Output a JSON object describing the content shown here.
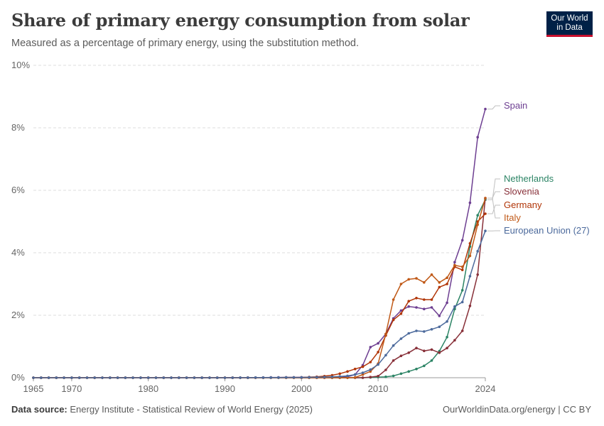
{
  "header": {
    "title": "Share of primary energy consumption from solar",
    "subtitle": "Measured as a percentage of primary energy, using the substitution method."
  },
  "logo": {
    "line1": "Our World",
    "line2": "in Data"
  },
  "footer": {
    "source_label": "Data source:",
    "source_text": "Energy Institute - Statistical Review of World Energy (2025)",
    "right_text": "OurWorldinData.org/energy | CC BY"
  },
  "colors": {
    "grid": "#dddddd",
    "axis_text": "#666666",
    "logo_bg": "#002147",
    "logo_accent": "#c8102e"
  },
  "chart_data": {
    "type": "line",
    "xlim": [
      1965,
      2024
    ],
    "ylim": [
      0,
      10
    ],
    "x_ticks": [
      1965,
      1970,
      1980,
      1990,
      2000,
      2010,
      2024
    ],
    "y_ticks": [
      0,
      2,
      4,
      6,
      8,
      10
    ],
    "y_tick_labels": [
      "0%",
      "2%",
      "4%",
      "6%",
      "8%",
      "10%"
    ],
    "grid": true,
    "legend": "line-end labels, right",
    "series": [
      {
        "name": "Spain",
        "color": "#6d3e91",
        "points": [
          [
            1965,
            0
          ],
          [
            1990,
            0
          ],
          [
            2005,
            0.02
          ],
          [
            2006,
            0.03
          ],
          [
            2007,
            0.1
          ],
          [
            2008,
            0.4
          ],
          [
            2009,
            0.98
          ],
          [
            2010,
            1.1
          ],
          [
            2011,
            1.4
          ],
          [
            2012,
            1.9
          ],
          [
            2013,
            2.15
          ],
          [
            2014,
            2.28
          ],
          [
            2015,
            2.25
          ],
          [
            2016,
            2.2
          ],
          [
            2017,
            2.25
          ],
          [
            2018,
            1.98
          ],
          [
            2019,
            2.4
          ],
          [
            2020,
            3.7
          ],
          [
            2021,
            4.4
          ],
          [
            2022,
            5.6
          ],
          [
            2023,
            7.7
          ],
          [
            2024,
            8.6
          ]
        ]
      },
      {
        "name": "Netherlands",
        "color": "#2c8465",
        "points": [
          [
            1965,
            0
          ],
          [
            2008,
            0
          ],
          [
            2009,
            0.01
          ],
          [
            2010,
            0.02
          ],
          [
            2011,
            0.03
          ],
          [
            2012,
            0.06
          ],
          [
            2013,
            0.13
          ],
          [
            2014,
            0.2
          ],
          [
            2015,
            0.28
          ],
          [
            2016,
            0.38
          ],
          [
            2017,
            0.55
          ],
          [
            2018,
            0.85
          ],
          [
            2019,
            1.3
          ],
          [
            2020,
            2.2
          ],
          [
            2021,
            2.8
          ],
          [
            2022,
            4.2
          ],
          [
            2023,
            5.2
          ],
          [
            2024,
            5.7
          ]
        ]
      },
      {
        "name": "Slovenia",
        "color": "#883039",
        "points": [
          [
            1965,
            0
          ],
          [
            2008,
            0
          ],
          [
            2009,
            0.02
          ],
          [
            2010,
            0.05
          ],
          [
            2011,
            0.25
          ],
          [
            2012,
            0.55
          ],
          [
            2013,
            0.7
          ],
          [
            2014,
            0.8
          ],
          [
            2015,
            0.95
          ],
          [
            2016,
            0.86
          ],
          [
            2017,
            0.9
          ],
          [
            2018,
            0.8
          ],
          [
            2019,
            0.95
          ],
          [
            2020,
            1.2
          ],
          [
            2021,
            1.5
          ],
          [
            2022,
            2.3
          ],
          [
            2023,
            3.3
          ],
          [
            2024,
            5.75
          ]
        ]
      },
      {
        "name": "Germany",
        "color": "#b13507",
        "points": [
          [
            1965,
            0
          ],
          [
            1990,
            0
          ],
          [
            2000,
            0.01
          ],
          [
            2001,
            0.02
          ],
          [
            2002,
            0.03
          ],
          [
            2003,
            0.05
          ],
          [
            2004,
            0.08
          ],
          [
            2005,
            0.13
          ],
          [
            2006,
            0.2
          ],
          [
            2007,
            0.28
          ],
          [
            2008,
            0.35
          ],
          [
            2009,
            0.5
          ],
          [
            2010,
            0.82
          ],
          [
            2011,
            1.35
          ],
          [
            2012,
            1.85
          ],
          [
            2013,
            2.05
          ],
          [
            2014,
            2.45
          ],
          [
            2015,
            2.55
          ],
          [
            2016,
            2.5
          ],
          [
            2017,
            2.5
          ],
          [
            2018,
            2.9
          ],
          [
            2019,
            3.0
          ],
          [
            2020,
            3.55
          ],
          [
            2021,
            3.45
          ],
          [
            2022,
            4.3
          ],
          [
            2023,
            5.0
          ],
          [
            2024,
            5.25
          ]
        ]
      },
      {
        "name": "Italy",
        "color": "#c05917",
        "points": [
          [
            1965,
            0
          ],
          [
            2006,
            0
          ],
          [
            2007,
            0.01
          ],
          [
            2008,
            0.1
          ],
          [
            2009,
            0.2
          ],
          [
            2010,
            0.45
          ],
          [
            2011,
            1.4
          ],
          [
            2012,
            2.5
          ],
          [
            2013,
            3.0
          ],
          [
            2014,
            3.15
          ],
          [
            2015,
            3.18
          ],
          [
            2016,
            3.05
          ],
          [
            2017,
            3.3
          ],
          [
            2018,
            3.05
          ],
          [
            2019,
            3.2
          ],
          [
            2020,
            3.6
          ],
          [
            2021,
            3.55
          ],
          [
            2022,
            3.9
          ],
          [
            2023,
            4.9
          ],
          [
            2024,
            5.75
          ]
        ]
      },
      {
        "name": "European Union (27)",
        "color": "#4c6a9c",
        "points": [
          [
            1965,
            0
          ],
          [
            1990,
            0
          ],
          [
            2000,
            0.01
          ],
          [
            2003,
            0.02
          ],
          [
            2004,
            0.03
          ],
          [
            2005,
            0.04
          ],
          [
            2006,
            0.06
          ],
          [
            2007,
            0.1
          ],
          [
            2008,
            0.16
          ],
          [
            2009,
            0.26
          ],
          [
            2010,
            0.42
          ],
          [
            2011,
            0.72
          ],
          [
            2012,
            1.03
          ],
          [
            2013,
            1.25
          ],
          [
            2014,
            1.42
          ],
          [
            2015,
            1.5
          ],
          [
            2016,
            1.48
          ],
          [
            2017,
            1.55
          ],
          [
            2018,
            1.63
          ],
          [
            2019,
            1.8
          ],
          [
            2020,
            2.28
          ],
          [
            2021,
            2.42
          ],
          [
            2022,
            3.25
          ],
          [
            2023,
            4.05
          ],
          [
            2024,
            4.7
          ]
        ]
      }
    ]
  }
}
